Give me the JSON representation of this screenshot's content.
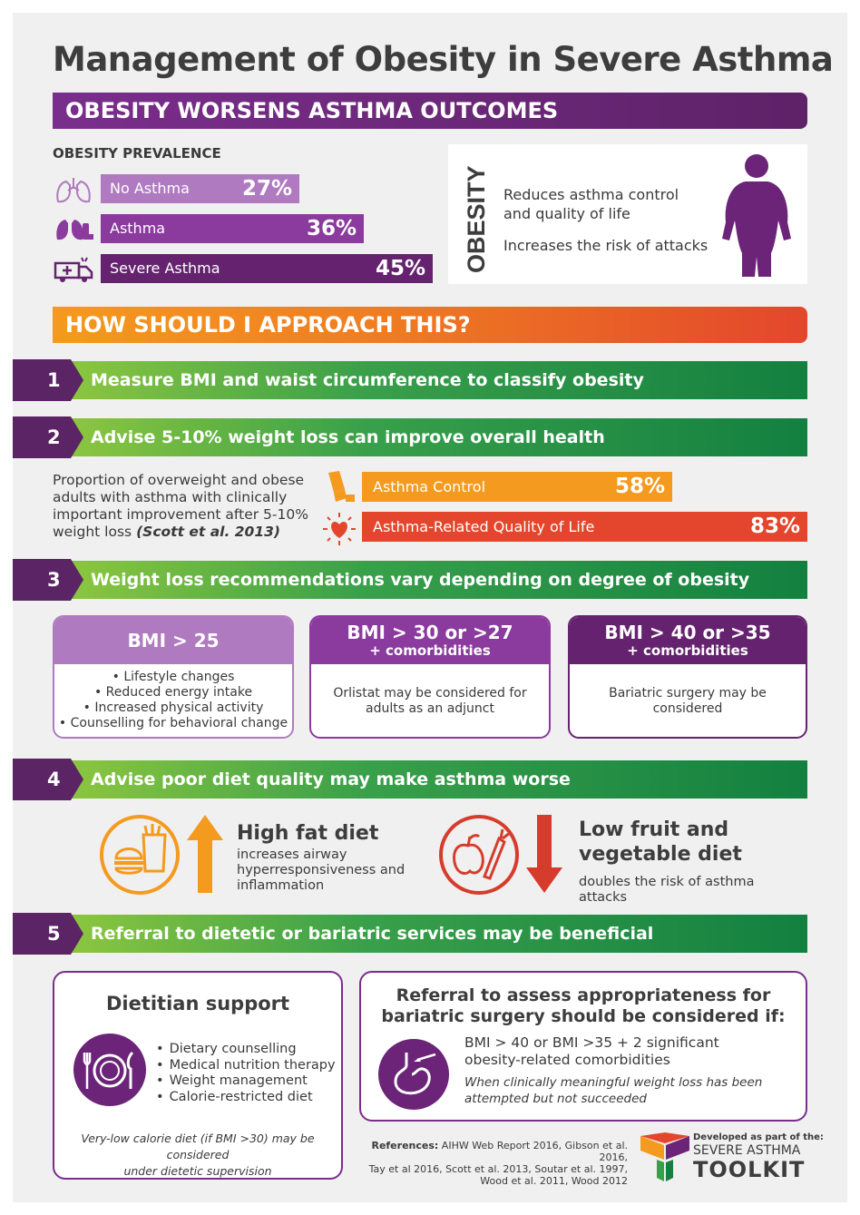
{
  "title": "Management of Obesity in Severe Asthma",
  "section_outcomes": {
    "banner": "OBESITY WORSENS ASTHMA OUTCOMES",
    "prevalence_label": "OBESITY PREVALENCE",
    "prevalence": [
      {
        "label": "No Asthma",
        "value": "27%",
        "fraction": 0.27,
        "icon": "lungs-outline-icon",
        "color": "#b07ac0"
      },
      {
        "label": "Asthma",
        "value": "36%",
        "fraction": 0.36,
        "icon": "lungs-inhaler-icon",
        "color": "#8b3a9e"
      },
      {
        "label": "Severe Asthma",
        "value": "45%",
        "fraction": 0.45,
        "icon": "ambulance-icon",
        "color": "#65236f"
      }
    ],
    "obesity_box": {
      "vertical_label": "OBESITY",
      "line1a": "Reduces asthma control",
      "line1b": "and quality of life",
      "line2": "Increases the risk of attacks",
      "icon": "obese-person-icon"
    }
  },
  "approach_banner": "HOW SHOULD I APPROACH THIS?",
  "steps": [
    {
      "num": "1",
      "text": "Measure BMI and waist circumference to classify obesity"
    },
    {
      "num": "2",
      "text": "Advise 5-10% weight loss can improve overall health"
    },
    {
      "num": "3",
      "text": "Weight loss recommendations vary depending on degree of obesity"
    },
    {
      "num": "4",
      "text": "Advise poor diet quality may make asthma worse"
    },
    {
      "num": "5",
      "text": "Referral to dietetic or bariatric services may be beneficial"
    }
  ],
  "step2": {
    "text": "Proportion of overweight and obese adults with asthma with clinically important improvement after 5-10% weight loss",
    "citation": "(Scott et al. 2013)",
    "bars": [
      {
        "label": "Asthma Control",
        "value": "58%",
        "fraction": 0.58,
        "icon": "inhaler-icon",
        "color": "#f49a1e"
      },
      {
        "label": "Asthma-Related Quality of Life",
        "value": "83%",
        "fraction": 0.83,
        "icon": "heart-icon",
        "color": "#e3462c"
      }
    ]
  },
  "step3": {
    "cards": [
      {
        "head": "BMI > 25",
        "sub": "",
        "color": "#b07ac0",
        "items": [
          "Lifestyle changes",
          "Reduced energy intake",
          "Increased physical activity",
          "Counselling for behavioral change"
        ],
        "body": ""
      },
      {
        "head": "BMI > 30 or >27",
        "sub": "+ comorbidities",
        "color": "#8b3a9e",
        "items": [],
        "body": "Orlistat may be considered for adults as an adjunct"
      },
      {
        "head": "BMI > 40 or >35",
        "sub": "+ comorbidities",
        "color": "#65236f",
        "items": [],
        "body": "Bariatric surgery may be considered"
      }
    ]
  },
  "step4": {
    "left": {
      "title": "High fat diet",
      "text": "increases airway hyperresponsiveness and inflammation",
      "icon": "fast-food-icon",
      "arrow": "arrow-up-icon"
    },
    "right": {
      "title_a": "Low fruit and",
      "title_b": "vegetable diet",
      "text": "doubles the risk of asthma attacks",
      "icon": "fruit-vegetable-icon",
      "arrow": "arrow-down-icon"
    }
  },
  "step5": {
    "dietitian": {
      "title": "Dietitian support",
      "items": [
        "Dietary counselling",
        "Medical nutrition therapy",
        "Weight management",
        "Calorie-restricted diet"
      ],
      "note_a": "Very-low calorie diet (if BMI >30) may be considered",
      "note_b": "under dietetic supervision",
      "icon": "plate-cutlery-icon"
    },
    "bariatric": {
      "title_a": "Referral to assess appropriateness for",
      "title_b": "bariatric surgery should be considered if:",
      "crit_a": "BMI > 40 or BMI >35 + 2 significant",
      "crit_b": "obesity-related comorbidities",
      "note_a": "When clinically meaningful weight loss has been",
      "note_b": "attempted but not succeeded",
      "icon": "stomach-surgery-icon"
    }
  },
  "references": {
    "label": "References:",
    "line1": "AIHW Web Report 2016, Gibson et al. 2016,",
    "line2": "Tay et al 2016, Scott et al. 2013, Soutar et al. 1997,",
    "line3": "Wood et al. 2011, Wood 2012"
  },
  "toolkit": {
    "developed": "Developed as part of the:",
    "line1": "SEVERE ASTHMA",
    "line2": "TOOLKIT"
  }
}
